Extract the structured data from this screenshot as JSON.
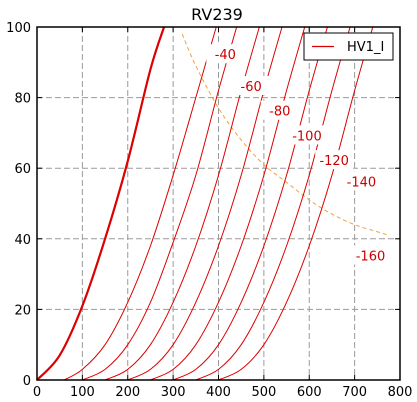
{
  "chart_data": {
    "type": "line",
    "title": "RV239",
    "xlabel": "",
    "ylabel": "",
    "xlim": [
      0,
      800
    ],
    "ylim": [
      0,
      100
    ],
    "xticks": [
      0,
      100,
      200,
      300,
      400,
      500,
      600,
      700,
      800
    ],
    "yticks": [
      0,
      20,
      40,
      60,
      80,
      100
    ],
    "grid": true,
    "legend": {
      "position": "top-right",
      "entries": [
        "HV1_I"
      ]
    },
    "colors": {
      "curves": "#dd0000",
      "power_limit": "#f2a03d",
      "grid": "#9a9a9a"
    },
    "series": [
      {
        "name": "HV1_I",
        "label": "",
        "x": [
          0,
          50,
          100,
          150,
          200,
          250,
          280
        ],
        "y": [
          0,
          7,
          21,
          40,
          62,
          88,
          100
        ]
      },
      {
        "label": "",
        "x": [
          60,
          100,
          150,
          200,
          250,
          300,
          350,
          395
        ],
        "y": [
          0,
          3,
          10,
          22,
          38,
          58,
          80,
          100
        ]
      },
      {
        "label": "-40",
        "x": [
          100,
          150,
          200,
          250,
          300,
          350,
          400,
          440
        ],
        "y": [
          0,
          3,
          10,
          22,
          39,
          58,
          82,
          100
        ]
      },
      {
        "label": "-60",
        "x": [
          150,
          200,
          250,
          300,
          350,
          400,
          450,
          490
        ],
        "y": [
          0,
          3,
          10,
          22,
          38,
          58,
          82,
          100
        ]
      },
      {
        "label": "-80",
        "x": [
          200,
          250,
          300,
          350,
          400,
          450,
          500,
          540
        ],
        "y": [
          0,
          3,
          10,
          22,
          38,
          58,
          82,
          100
        ]
      },
      {
        "label": "-100",
        "x": [
          250,
          300,
          350,
          400,
          450,
          500,
          550,
          590
        ],
        "y": [
          0,
          3,
          10,
          22,
          38,
          58,
          82,
          100
        ]
      },
      {
        "label": "-120",
        "x": [
          300,
          350,
          400,
          450,
          500,
          550,
          600,
          640
        ],
        "y": [
          0,
          3,
          10,
          22,
          38,
          58,
          82,
          100
        ]
      },
      {
        "label": "-140",
        "x": [
          350,
          400,
          450,
          500,
          550,
          600,
          650,
          690
        ],
        "y": [
          0,
          3,
          10,
          22,
          38,
          58,
          82,
          100
        ]
      },
      {
        "label": "-160",
        "x": [
          400,
          450,
          500,
          550,
          600,
          650,
          700,
          740
        ],
        "y": [
          0,
          3,
          10,
          22,
          38,
          58,
          82,
          100
        ]
      }
    ],
    "power_limit": {
      "x": [
        320,
        350,
        400,
        450,
        500,
        550,
        600,
        650,
        700,
        750,
        775
      ],
      "y": [
        98,
        89,
        77,
        68,
        61,
        56,
        51,
        47,
        44,
        42,
        41
      ]
    },
    "curve_labels": [
      {
        "text": "-40",
        "x": 415,
        "y": 92
      },
      {
        "text": "-60",
        "x": 472,
        "y": 83
      },
      {
        "text": "-80",
        "x": 535,
        "y": 76
      },
      {
        "text": "-100",
        "x": 595,
        "y": 69
      },
      {
        "text": "-120",
        "x": 655,
        "y": 62
      },
      {
        "text": "-140",
        "x": 715,
        "y": 56
      },
      {
        "text": "-160",
        "x": 735,
        "y": 35
      }
    ]
  }
}
